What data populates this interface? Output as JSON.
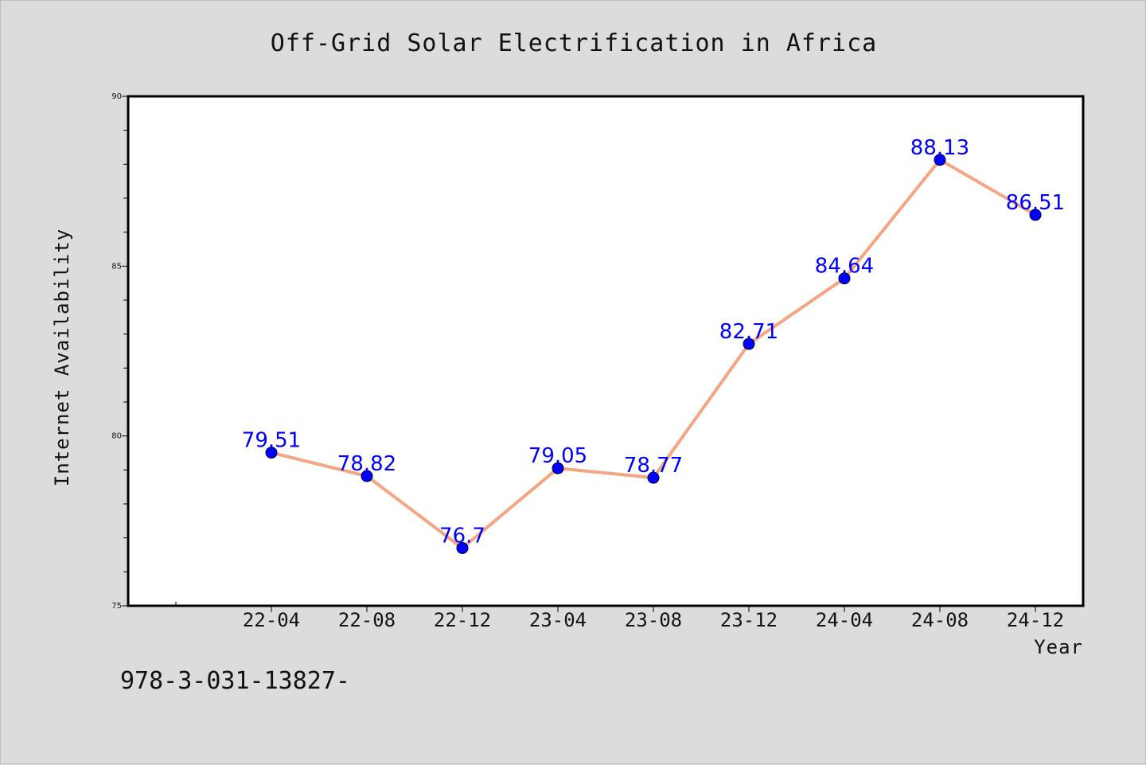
{
  "chart_data": {
    "type": "line",
    "title": "Off-Grid Solar Electrification in Africa",
    "xlabel": "Year",
    "ylabel": "Internet Availability",
    "categories": [
      "22-04",
      "22-08",
      "22-12",
      "23-04",
      "23-08",
      "23-12",
      "24-04",
      "24-08",
      "24-12"
    ],
    "series": [
      {
        "values": [
          79.51,
          78.82,
          76.7,
          79.05,
          78.77,
          82.71,
          84.64,
          88.13,
          86.51
        ],
        "labels": [
          "79.51",
          "78.82",
          "76.7",
          "79.05",
          "78.77",
          "82.71",
          "84.64",
          "88.13",
          "86.51"
        ]
      }
    ],
    "ylim": [
      75,
      90
    ],
    "yticks": [
      75,
      80,
      85,
      90
    ],
    "ytick_labels": [
      "75",
      "80",
      "85",
      "90"
    ],
    "grid": false,
    "legend": "none",
    "colors": {
      "line": "#f4a582",
      "marker": "#0000ff",
      "data_label": "#0000ff",
      "background": "#dcdcdc",
      "plot_background": "#ffffff"
    }
  },
  "footnote": "978-3-031-13827-"
}
